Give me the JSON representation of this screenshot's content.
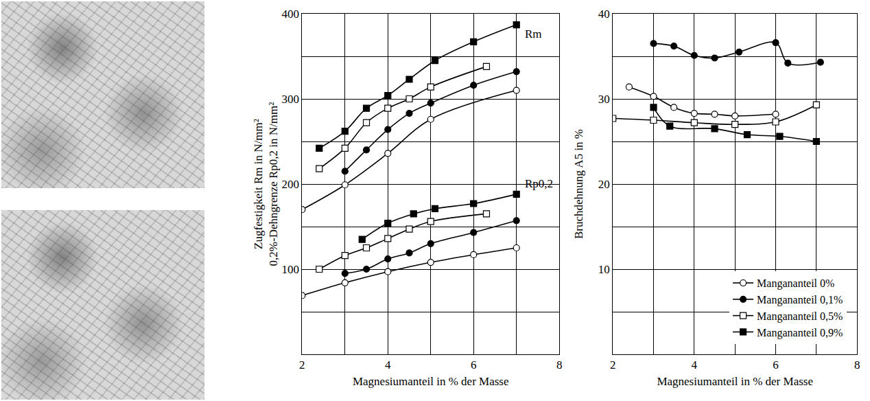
{
  "chart_data": [
    {
      "type": "line",
      "y_title": [
        "Zugfestigkeit Rm in N/mm²",
        "0,2%-Dehngrenze Rp0,2 in N/mm²"
      ],
      "x_title": "Magnesiumanteil in % der Masse",
      "xlim": [
        2,
        8
      ],
      "xticks": [
        2,
        4,
        6,
        8
      ],
      "ylim": [
        0,
        400
      ],
      "yticks": [
        100,
        200,
        300,
        400
      ],
      "grid": true,
      "annotations": [
        "Rm",
        "Rp0,2"
      ],
      "series": [
        {
          "name": "Mangananteil 0%",
          "group": "Rm",
          "marker": "open circle",
          "line_style": "spline",
          "color": "#000000",
          "x": [
            2,
            3,
            4,
            5,
            7
          ],
          "values": [
            170,
            199,
            236,
            276,
            310
          ]
        },
        {
          "name": "Mangananteil 0,1%",
          "group": "Rm",
          "marker": "circle",
          "line_style": "spline",
          "color": "#000000",
          "x": [
            3,
            3.5,
            4,
            4.5,
            5,
            6,
            7
          ],
          "values": [
            215,
            240,
            264,
            283,
            295,
            316,
            332
          ]
        },
        {
          "name": "Mangananteil 0,5%",
          "group": "Rm",
          "marker": "open square",
          "line_style": "spline",
          "color": "#000000",
          "x": [
            2.4,
            3,
            3.5,
            4,
            4.5,
            5,
            6.3
          ],
          "values": [
            218,
            242,
            272,
            289,
            300,
            314,
            338
          ]
        },
        {
          "name": "Mangananteil 0,9%",
          "group": "Rm",
          "marker": "square",
          "line_style": "spline",
          "color": "#000000",
          "x": [
            2.4,
            3,
            3.5,
            4,
            4.5,
            5.1,
            6,
            7
          ],
          "values": [
            242,
            262,
            289,
            304,
            323,
            345,
            367,
            387
          ]
        },
        {
          "name": "Mangananteil 0%",
          "group": "Rp0,2",
          "marker": "open circle",
          "line_style": "spline",
          "color": "#000000",
          "x": [
            2,
            3,
            4,
            5,
            6,
            7
          ],
          "values": [
            69,
            84,
            97,
            108,
            117,
            125
          ]
        },
        {
          "name": "Mangananteil 0,1%",
          "group": "Rp0,2",
          "marker": "circle",
          "line_style": "spline",
          "color": "#000000",
          "x": [
            3,
            3.5,
            4,
            4.5,
            5,
            6,
            7
          ],
          "values": [
            95,
            100,
            112,
            119,
            130,
            143,
            157
          ]
        },
        {
          "name": "Mangananteil 0,5%",
          "group": "Rp0,2",
          "marker": "open square",
          "line_style": "spline",
          "color": "#000000",
          "x": [
            2.4,
            3,
            3.5,
            4,
            4.5,
            5,
            6.3
          ],
          "values": [
            100,
            116,
            125,
            136,
            147,
            156,
            165
          ]
        },
        {
          "name": "Mangananteil 0,9%",
          "group": "Rp0,2",
          "marker": "square",
          "line_style": "spline",
          "color": "#000000",
          "x": [
            3.4,
            4,
            4.6,
            5.1,
            6,
            7
          ],
          "values": [
            135,
            154,
            165,
            171,
            177,
            188
          ]
        }
      ]
    },
    {
      "type": "line",
      "y_title": [
        "Bruchdehnung A5 in %"
      ],
      "x_title": "Magnesiumanteil in % der Masse",
      "xlim": [
        2,
        8
      ],
      "xticks": [
        2,
        4,
        6,
        8
      ],
      "ylim": [
        0,
        40
      ],
      "yticks": [
        10,
        20,
        30,
        40
      ],
      "grid": true,
      "legend": "lower right",
      "series": [
        {
          "name": "Mangananteil 0%",
          "marker": "open circle",
          "line_style": "spline",
          "color": "#000000",
          "x": [
            2.4,
            3,
            3.5,
            4,
            4.5,
            5,
            6
          ],
          "values": [
            31.4,
            30.3,
            29,
            28.3,
            28.2,
            28,
            28.2
          ]
        },
        {
          "name": "Mangananteil 0,1%",
          "marker": "circle",
          "line_style": "spline",
          "color": "#000000",
          "x": [
            3,
            3.5,
            4,
            4.5,
            5.1,
            6,
            6.3,
            7.1
          ],
          "values": [
            36.5,
            36.2,
            35.1,
            34.8,
            35.5,
            36.6,
            34.2,
            34.3
          ]
        },
        {
          "name": "Mangananteil 0,5%",
          "marker": "open square",
          "line_style": "spline",
          "color": "#000000",
          "x": [
            2,
            3,
            4,
            5,
            6,
            7
          ],
          "values": [
            27.7,
            27.5,
            27.2,
            27,
            27.3,
            29.3
          ]
        },
        {
          "name": "Mangananteil 0,9%",
          "marker": "square",
          "line_style": "spline",
          "color": "#000000",
          "x": [
            3,
            3.4,
            4.5,
            5.3,
            6.1,
            7
          ],
          "values": [
            29,
            26.8,
            26.5,
            25.8,
            25.6,
            25
          ]
        }
      ]
    }
  ]
}
